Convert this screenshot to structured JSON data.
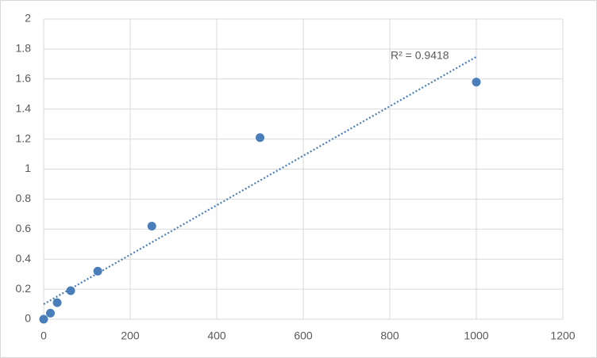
{
  "chart_data": {
    "type": "scatter",
    "x": [
      0,
      15.6,
      31.25,
      62.5,
      125,
      250,
      500,
      1000
    ],
    "series": [
      {
        "color": "#4a7ebb",
        "values": [
          0,
          0.04,
          0.11,
          0.19,
          0.32,
          0.62,
          1.21,
          1.58
        ]
      }
    ],
    "xlim": [
      0,
      1200
    ],
    "xticks": [
      0,
      200,
      400,
      600,
      800,
      1000,
      1200
    ],
    "ylim": [
      0,
      2
    ],
    "yticks": [
      0,
      0.2,
      0.4,
      0.6,
      0.8,
      1,
      1.2,
      1.4,
      1.6,
      1.8,
      2
    ],
    "grid": true,
    "trendline": "linear",
    "annotation": "R² = 0.9418"
  }
}
